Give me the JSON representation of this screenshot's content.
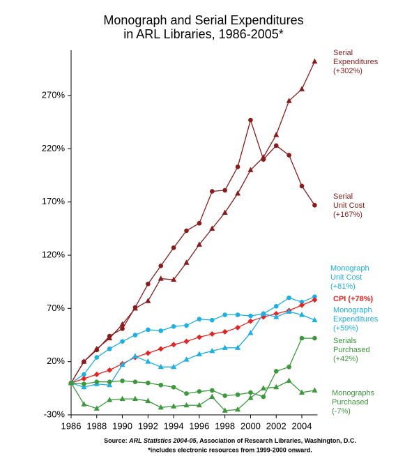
{
  "chart_data": {
    "type": "line",
    "title": "Monograph and Serial Expenditures\nin ARL Libraries, 1986-2005*",
    "x": [
      1986,
      1987,
      1988,
      1989,
      1990,
      1991,
      1992,
      1993,
      1994,
      1995,
      1996,
      1997,
      1998,
      1999,
      2000,
      2001,
      2002,
      2003,
      2004,
      2005
    ],
    "xlim": [
      1986,
      2005
    ],
    "xticks": [
      1986,
      1988,
      1990,
      1992,
      1994,
      1996,
      1998,
      2000,
      2002,
      2004
    ],
    "ylim": [
      -30,
      310
    ],
    "yticks": [
      {
        "value": -30,
        "label": "-30%"
      },
      {
        "value": 20,
        "label": "20%"
      },
      {
        "value": 70,
        "label": "70%"
      },
      {
        "value": 120,
        "label": "120%"
      },
      {
        "value": 170,
        "label": "170%"
      },
      {
        "value": 220,
        "label": "220%"
      },
      {
        "value": 270,
        "label": "270%"
      }
    ],
    "series": [
      {
        "name": "Serial\nExpenditures\n(+302%)",
        "color": "#8b1a1a",
        "marker": "triangle",
        "values": [
          0,
          20,
          32,
          42,
          55,
          70,
          77,
          98,
          97,
          113,
          130,
          145,
          160,
          178,
          200,
          212,
          233,
          265,
          276,
          302
        ]
      },
      {
        "name": "Serial\nUnit Cost\n(+167%)",
        "color": "#8b1a1a",
        "marker": "circle",
        "values": [
          0,
          20,
          31,
          44,
          51,
          71,
          93,
          110,
          127,
          143,
          150,
          180,
          181,
          203,
          247,
          210,
          223,
          214,
          185,
          167
        ]
      },
      {
        "name": "Monograph\nUnit Cost\n(+81%)",
        "color": "#1ab0e8",
        "marker": "circle",
        "values": [
          0,
          8,
          24,
          32,
          39,
          45,
          50,
          49,
          53,
          54,
          60,
          59,
          64,
          64,
          63,
          65,
          72,
          80,
          76,
          81
        ]
      },
      {
        "name": "CPI (+78%)",
        "color": "#e8231f",
        "marker": "diamond",
        "values": [
          0,
          4,
          8,
          12,
          18,
          24,
          28,
          32,
          36,
          39,
          43,
          46,
          48,
          52,
          58,
          62,
          65,
          68,
          73,
          78
        ]
      },
      {
        "name": "Monograph\nExpenditures\n(+59%)",
        "color": "#1ab0e8",
        "marker": "triangle",
        "values": [
          0,
          -4,
          -1,
          -2,
          17,
          25,
          20,
          15,
          15,
          22,
          27,
          30,
          33,
          33,
          47,
          65,
          62,
          67,
          64,
          59
        ]
      },
      {
        "name": "Serials\nPurchased\n(+42%)",
        "color": "#3a9a3a",
        "marker": "circle",
        "values": [
          0,
          -1,
          1,
          1,
          2,
          1,
          0,
          -2,
          -4,
          -10,
          -8,
          -7,
          -12,
          -11,
          -9,
          -13,
          11,
          15,
          42,
          42
        ]
      },
      {
        "name": "Monographs\nPurchased\n(-7%)",
        "color": "#3a9a3a",
        "marker": "triangle",
        "values": [
          0,
          -20,
          -24,
          -16,
          -15,
          -15,
          -17,
          -23,
          -22,
          -21,
          -21,
          -13,
          -26,
          -25,
          -14,
          -5,
          -4,
          2,
          -9,
          -7
        ]
      }
    ],
    "source": {
      "prefix": "Source:",
      "work": "ARL Statistics 2004-05",
      "rest": ", Association of Research Libraries, Washington, D.C."
    },
    "note": "*includes electronic resources from 1999-2000 onward."
  }
}
